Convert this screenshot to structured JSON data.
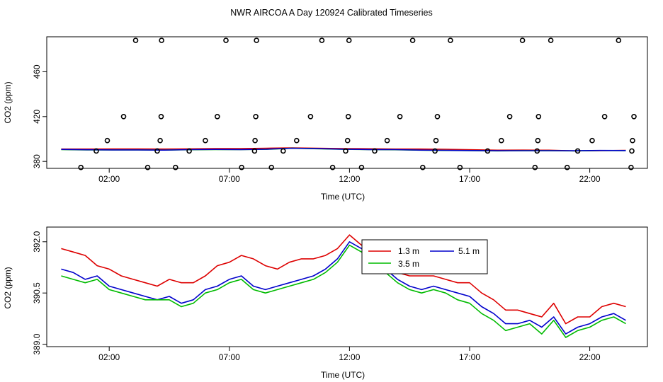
{
  "title": "NWR AIRCOA A  Day 120924  Calibrated Timeseries",
  "colors": {
    "1.3 m": "#dd0000",
    "3.5 m": "#00bb00",
    "5.1 m": "#0000cc",
    "outliers": "#000000"
  },
  "chart_data": [
    {
      "type": "scatter",
      "xlabel": "Time (UTC)",
      "ylabel": "CO2 (ppm)",
      "x_ticks": [
        "02:00",
        "07:00",
        "12:00",
        "17:00",
        "22:00"
      ],
      "x_tick_values": [
        2,
        7,
        12,
        17,
        22
      ],
      "y_ticks": [
        "380",
        "420",
        "460"
      ],
      "y_tick_values": [
        380,
        420,
        460
      ],
      "xlim": [
        -0.6,
        24.4
      ],
      "ylim": [
        373.8,
        491.2
      ],
      "outliers": {
        "symbol": "open-circle",
        "x": [
          0.82,
          1.46,
          1.92,
          2.6,
          3.1,
          3.6,
          4.0,
          4.12,
          4.16,
          4.18,
          4.76,
          5.33,
          6.0,
          6.5,
          6.86,
          7.51,
          8.05,
          8.07,
          8.1,
          8.13,
          8.75,
          9.24,
          9.8,
          10.38,
          10.85,
          11.3,
          11.84,
          11.92,
          11.95,
          11.98,
          12.5,
          13.05,
          13.57,
          14.1,
          14.63,
          15.05,
          15.56,
          15.6,
          15.66,
          16.2,
          16.6,
          17.75,
          18.32,
          18.67,
          19.2,
          19.72,
          19.81,
          19.84,
          19.87,
          20.38,
          21.06,
          21.5,
          22.1,
          22.62,
          23.2,
          23.72,
          23.75,
          23.78,
          23.84
        ]
      },
      "series": [
        {
          "name": "1.3 m",
          "values": [
            391.0,
            391.0,
            391.1,
            391.1,
            391.0,
            391.2,
            391.4,
            391.5,
            391.8,
            392.1,
            391.8,
            391.5,
            391.3,
            391.0,
            391.0,
            390.8,
            390.4,
            390.0,
            390.1,
            390.0,
            389.4,
            389.6,
            389.9
          ]
        },
        {
          "name": "3.5 m",
          "values": [
            390.6,
            390.3,
            390.2,
            390.2,
            390.1,
            390.4,
            390.6,
            390.5,
            390.8,
            391.7,
            391.3,
            390.8,
            390.5,
            390.4,
            390.0,
            389.8,
            389.6,
            389.4,
            389.5,
            389.5,
            389.4,
            389.7,
            389.6
          ]
        },
        {
          "name": "5.1 m",
          "values": [
            390.7,
            390.4,
            390.3,
            390.3,
            390.1,
            390.5,
            390.7,
            390.6,
            390.9,
            391.8,
            391.4,
            390.9,
            390.6,
            390.5,
            390.1,
            389.9,
            389.7,
            389.5,
            389.6,
            389.6,
            389.5,
            389.8,
            389.7
          ]
        }
      ]
    },
    {
      "type": "line",
      "xlabel": "Time (UTC)",
      "ylabel": "CO2 (ppm)",
      "x_ticks": [
        "02:00",
        "07:00",
        "12:00",
        "17:00",
        "22:00"
      ],
      "x_tick_values": [
        2,
        7,
        12,
        17,
        22
      ],
      "y_ticks": [
        "389.0",
        "390.5",
        "392.0"
      ],
      "y_tick_values": [
        389.0,
        390.5,
        392.0
      ],
      "xlim": [
        -0.6,
        24.4
      ],
      "ylim": [
        388.93,
        392.43
      ],
      "legend_position": "top-right",
      "legend": [
        {
          "label": "1.3 m",
          "color": "#dd0000"
        },
        {
          "label": "5.1 m",
          "color": "#0000cc"
        },
        {
          "label": "3.5 m",
          "color": "#00bb00"
        }
      ],
      "series": [
        {
          "name": "1.3 m",
          "x": [
            0.0,
            0.5,
            1.0,
            1.5,
            2.0,
            2.5,
            3.0,
            3.5,
            4.0,
            4.5,
            5.0,
            5.5,
            6.0,
            6.5,
            7.0,
            7.5,
            8.0,
            8.5,
            9.0,
            9.5,
            10.0,
            10.5,
            11.0,
            11.5,
            12.0,
            12.5,
            13.0,
            13.5,
            14.0,
            14.5,
            15.0,
            15.5,
            16.0,
            16.5,
            17.0,
            17.5,
            18.0,
            18.5,
            19.0,
            19.5,
            20.0,
            20.5,
            21.0,
            21.5,
            22.0,
            22.5,
            23.0,
            23.5
          ],
          "values": [
            391.8,
            391.7,
            391.6,
            391.3,
            391.2,
            391.0,
            390.9,
            390.8,
            390.7,
            390.9,
            390.8,
            390.8,
            391.0,
            391.3,
            391.4,
            391.6,
            391.5,
            391.3,
            391.2,
            391.4,
            391.5,
            391.5,
            391.6,
            391.8,
            392.2,
            391.9,
            391.7,
            391.3,
            391.1,
            391.0,
            391.0,
            391.0,
            390.9,
            390.8,
            390.8,
            390.5,
            390.3,
            390.0,
            390.0,
            389.9,
            389.8,
            390.2,
            389.6,
            389.8,
            389.8,
            390.1,
            390.2,
            390.1
          ]
        },
        {
          "name": "5.1 m",
          "x": [
            0.0,
            0.5,
            1.0,
            1.5,
            2.0,
            2.5,
            3.0,
            3.5,
            4.0,
            4.5,
            5.0,
            5.5,
            6.0,
            6.5,
            7.0,
            7.5,
            8.0,
            8.5,
            9.0,
            9.5,
            10.0,
            10.5,
            11.0,
            11.5,
            12.0,
            12.5,
            13.0,
            13.5,
            14.0,
            14.5,
            15.0,
            15.5,
            16.0,
            16.5,
            17.0,
            17.5,
            18.0,
            18.5,
            19.0,
            19.5,
            20.0,
            20.5,
            21.0,
            21.5,
            22.0,
            22.5,
            23.0,
            23.5
          ],
          "values": [
            391.2,
            391.1,
            390.9,
            391.0,
            390.7,
            390.6,
            390.5,
            390.4,
            390.3,
            390.4,
            390.2,
            390.3,
            390.6,
            390.7,
            390.9,
            391.0,
            390.7,
            390.6,
            390.7,
            390.8,
            390.9,
            391.0,
            391.2,
            391.5,
            392.0,
            391.8,
            391.6,
            391.2,
            390.9,
            390.7,
            390.6,
            390.7,
            390.6,
            390.5,
            390.4,
            390.1,
            389.9,
            389.6,
            389.6,
            389.7,
            389.5,
            389.8,
            389.3,
            389.5,
            389.6,
            389.8,
            389.9,
            389.7
          ]
        },
        {
          "name": "3.5 m",
          "x": [
            0.0,
            0.5,
            1.0,
            1.5,
            2.0,
            2.5,
            3.0,
            3.5,
            4.0,
            4.5,
            5.0,
            5.5,
            6.0,
            6.5,
            7.0,
            7.5,
            8.0,
            8.5,
            9.0,
            9.5,
            10.0,
            10.5,
            11.0,
            11.5,
            12.0,
            12.5,
            13.0,
            13.5,
            14.0,
            14.5,
            15.0,
            15.5,
            16.0,
            16.5,
            17.0,
            17.5,
            18.0,
            18.5,
            19.0,
            19.5,
            20.0,
            20.5,
            21.0,
            21.5,
            22.0,
            22.5,
            23.0,
            23.5
          ],
          "values": [
            391.0,
            390.9,
            390.8,
            390.9,
            390.6,
            390.5,
            390.4,
            390.3,
            390.3,
            390.3,
            390.1,
            390.2,
            390.5,
            390.6,
            390.8,
            390.9,
            390.6,
            390.5,
            390.6,
            390.7,
            390.8,
            390.9,
            391.1,
            391.4,
            391.9,
            391.7,
            391.4,
            391.1,
            390.8,
            390.6,
            390.5,
            390.6,
            390.5,
            390.3,
            390.2,
            389.9,
            389.7,
            389.4,
            389.5,
            389.6,
            389.3,
            389.7,
            389.2,
            389.4,
            389.5,
            389.7,
            389.8,
            389.6
          ]
        }
      ]
    }
  ]
}
